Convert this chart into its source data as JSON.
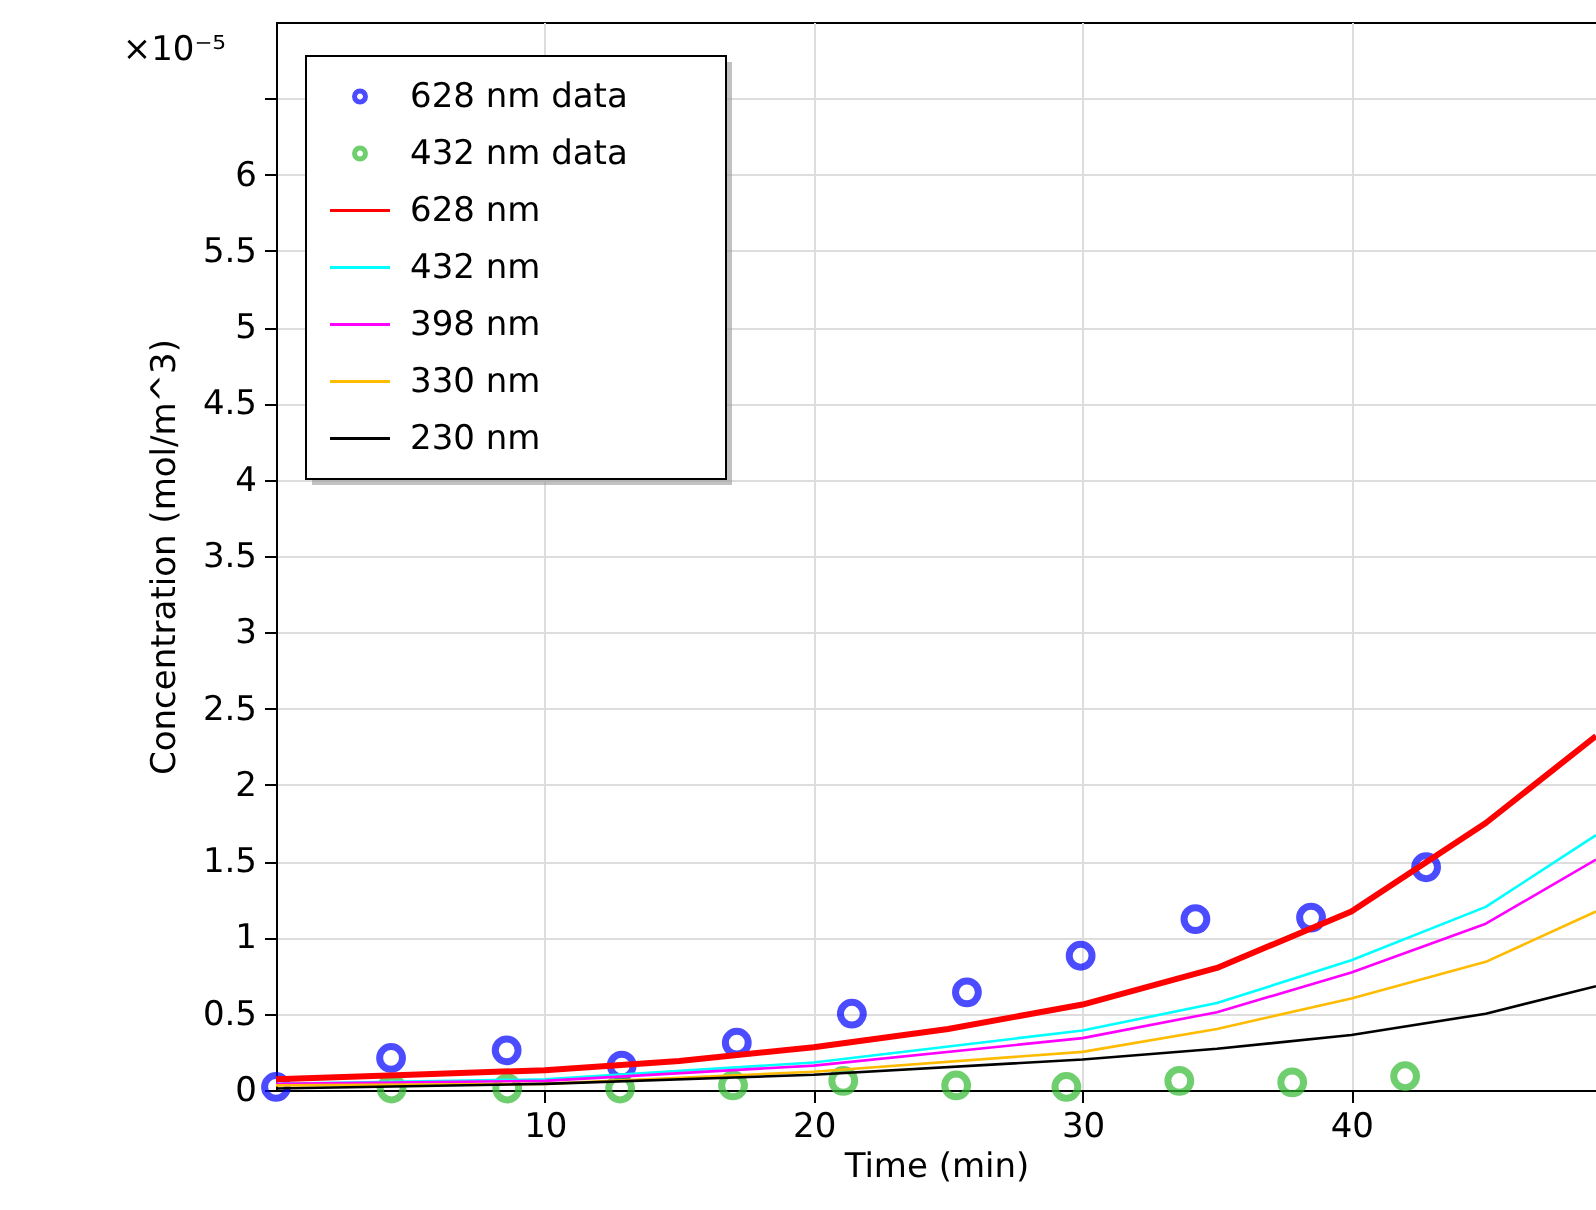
{
  "chart_data": {
    "type": "line",
    "xlabel": "Time (min)",
    "ylabel": "Concentration (mol/m^3)",
    "annotations": [
      "×10⁻⁵"
    ],
    "xlim": [
      0,
      49.1
    ],
    "xticks": [
      10,
      20,
      30,
      40
    ],
    "ylim": [
      0,
      7
    ],
    "yticks": [
      0,
      0.5,
      1,
      1.5,
      2,
      2.5,
      3,
      3.5,
      4,
      4.5,
      5,
      5.5,
      6,
      {
        "value": 6.5,
        "label": null
      }
    ],
    "grid": true,
    "legend": "top left",
    "series": [
      {
        "name": "628 nm data",
        "type": "scatter",
        "marker": "circle",
        "color": "#0000ff",
        "x": [
          0,
          4.28,
          8.58,
          12.86,
          17.14,
          21.42,
          25.7,
          29.93,
          34.2,
          38.5,
          42.78
        ],
        "values": [
          0.02,
          0.21,
          0.26,
          0.16,
          0.31,
          0.5,
          0.64,
          0.88,
          1.12,
          1.13,
          1.46
        ]
      },
      {
        "name": "432 nm data",
        "type": "scatter",
        "marker": "circle",
        "color": "#33bb33",
        "x": [
          4.3,
          8.6,
          12.8,
          17.0,
          21.1,
          25.3,
          29.4,
          33.6,
          37.8,
          42.0
        ],
        "values": [
          0.01,
          0.01,
          0.01,
          0.03,
          0.06,
          0.03,
          0.02,
          0.06,
          0.05,
          0.09
        ]
      },
      {
        "name": "628 nm",
        "color": "#ff0000",
        "x": [
          0,
          5,
          10,
          15,
          20,
          25,
          30,
          35,
          40,
          45,
          49.1
        ],
        "values": [
          0.07,
          0.1,
          0.13,
          0.19,
          0.28,
          0.4,
          0.56,
          0.8,
          1.17,
          1.75,
          2.32
        ]
      },
      {
        "name": "432 nm",
        "color": "#00ffff",
        "x": [
          0,
          10,
          20,
          30,
          35,
          40,
          45,
          49.1
        ],
        "values": [
          0.04,
          0.07,
          0.18,
          0.39,
          0.57,
          0.85,
          1.2,
          1.67
        ]
      },
      {
        "name": "398 nm",
        "color": "#ff00ff",
        "x": [
          0,
          10,
          20,
          30,
          35,
          40,
          45,
          49.1
        ],
        "values": [
          0.04,
          0.06,
          0.16,
          0.34,
          0.51,
          0.77,
          1.09,
          1.51
        ]
      },
      {
        "name": "330 nm",
        "color": "#ffbb00",
        "x": [
          0,
          10,
          20,
          30,
          35,
          40,
          45,
          49.1
        ],
        "values": [
          0.03,
          0.04,
          0.12,
          0.25,
          0.4,
          0.6,
          0.84,
          1.17
        ]
      },
      {
        "name": "230 nm",
        "color": "#000000",
        "x": [
          0,
          10,
          20,
          30,
          35,
          40,
          45,
          49.1
        ],
        "values": [
          0.01,
          0.04,
          0.1,
          0.2,
          0.27,
          0.36,
          0.5,
          0.68
        ]
      }
    ]
  }
}
